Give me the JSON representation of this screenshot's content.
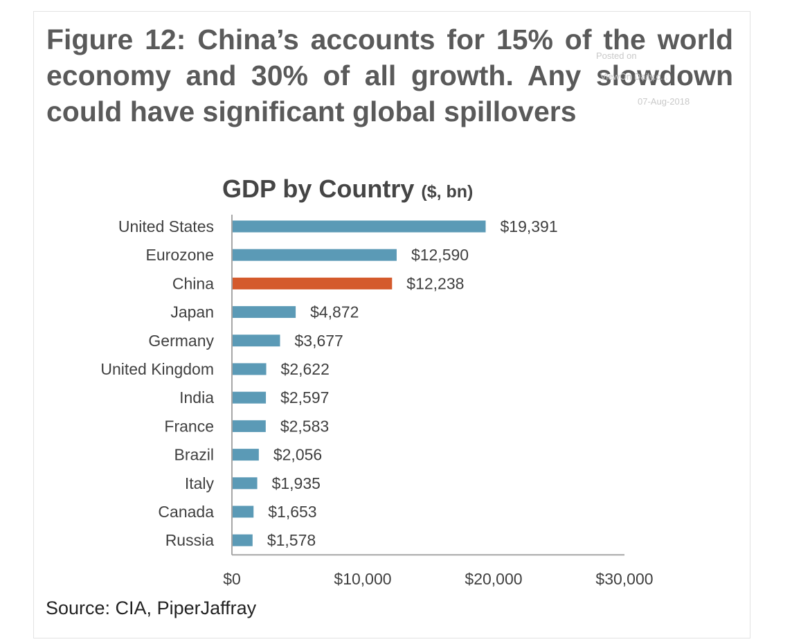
{
  "figure": {
    "title": "Figure 12: China’s accounts for 15% of the world economy and 30% of all growth. Any slowdown could have significant global spillovers",
    "source": "Source: CIA, PiperJaffray",
    "watermark": [
      "Posted on",
      "ViewOn Daily.c...",
      "07-Aug-2018"
    ]
  },
  "chart_data": {
    "type": "bar",
    "orientation": "horizontal",
    "title": "GDP by Country",
    "title_unit": "($, bn)",
    "xlabel": "",
    "ylabel": "",
    "xlim": [
      0,
      30000
    ],
    "x_ticks": [
      0,
      10000,
      20000,
      30000
    ],
    "x_tick_labels": [
      "$0",
      "$10,000",
      "$20,000",
      "$30,000"
    ],
    "grid": false,
    "categories": [
      "United States",
      "Eurozone",
      "China",
      "Japan",
      "Germany",
      "United Kingdom",
      "India",
      "France",
      "Brazil",
      "Italy",
      "Canada",
      "Russia"
    ],
    "values": [
      19391,
      12590,
      12238,
      4872,
      3677,
      2622,
      2597,
      2583,
      2056,
      1935,
      1653,
      1578
    ],
    "data_labels": [
      "$19,391",
      "$12,590",
      "$12,238",
      "$4,872",
      "$3,677",
      "$2,622",
      "$2,597",
      "$2,583",
      "$2,056",
      "$1,935",
      "$1,653",
      "$1,578"
    ],
    "highlight": "China",
    "colors": {
      "default": "#5b9ab6",
      "highlight": "#d45a2c"
    }
  }
}
